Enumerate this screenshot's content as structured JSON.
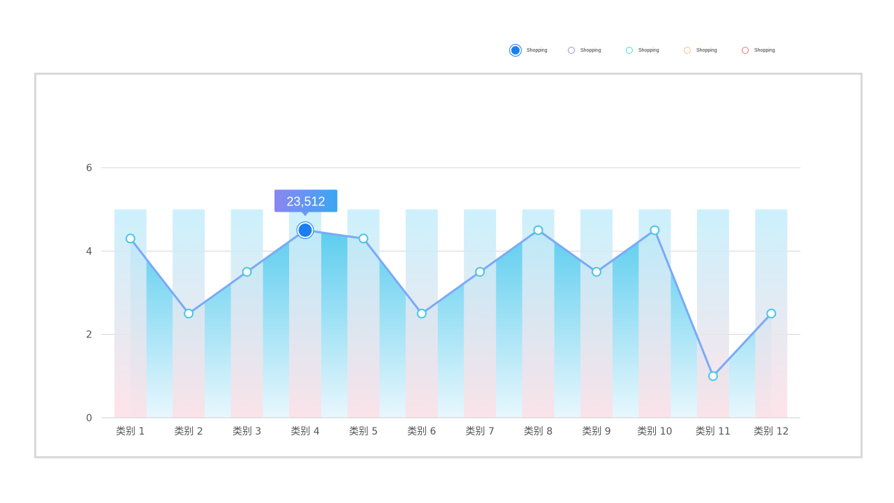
{
  "legend": {
    "items": [
      {
        "label": "Shopping",
        "color": "#1a7ff0",
        "active": true
      },
      {
        "label": "Shopping",
        "color": "#9b8fd9",
        "active": false
      },
      {
        "label": "Shopping",
        "color": "#4fd0e0",
        "active": false
      },
      {
        "label": "Shopping",
        "color": "#f5c080",
        "active": false
      },
      {
        "label": "Shopping",
        "color": "#ef6f7f",
        "active": false
      }
    ]
  },
  "tooltip": {
    "text": "23,512",
    "category_index": 3
  },
  "colors": {
    "line": "#7aaaf6",
    "bar_top": "#c4effc",
    "bar_bottom": "#fde0e6",
    "area_top": "#5ccdee",
    "area_bottom": "#e6f6fd",
    "highlight": "#1a7ff0",
    "tooltip_start": "#8a86f0",
    "tooltip_end": "#3aa6f2"
  },
  "chart_data": {
    "type": "bar",
    "categories": [
      "类别 1",
      "类别 2",
      "类别 3",
      "类别 4",
      "类别 5",
      "类别 6",
      "类别 7",
      "类别 8",
      "类别 9",
      "类别 10",
      "类别 11",
      "类别 12"
    ],
    "series": [
      {
        "type": "bar",
        "values": [
          5,
          5,
          5,
          5,
          5,
          5,
          5,
          5,
          5,
          5,
          5,
          5
        ]
      },
      {
        "type": "area",
        "values": [
          4.3,
          2.5,
          3.5,
          4.5,
          4.3,
          2.5,
          3.5,
          4.5,
          3.5,
          4.5,
          1.0,
          2.5
        ]
      },
      {
        "type": "line",
        "values": [
          4.3,
          2.5,
          3.5,
          4.5,
          4.3,
          2.5,
          3.5,
          4.5,
          3.5,
          4.5,
          1.0,
          2.5
        ]
      }
    ],
    "y_ticks": [
      "0",
      "2",
      "4",
      "6"
    ],
    "ylim": [
      0,
      6
    ],
    "grid": true
  }
}
